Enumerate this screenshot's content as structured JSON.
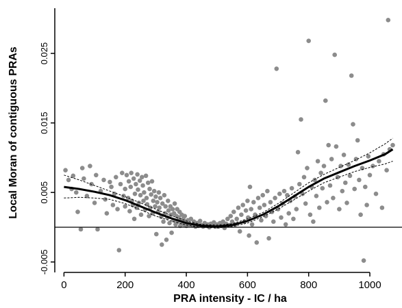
{
  "chart_data": {
    "type": "scatter",
    "xlabel": "PRA intensity - IC / ha",
    "ylabel": "Local Moran of contiguous PRAs",
    "xlim": [
      -30,
      1085
    ],
    "ylim": [
      -0.0065,
      0.0315
    ],
    "x_ticks": [
      0,
      200,
      400,
      600,
      800,
      1000
    ],
    "x_tick_labels": [
      "0",
      "200",
      "400",
      "600",
      "800",
      "1000"
    ],
    "y_ticks": [
      -0.005,
      0.005,
      0.015,
      0.025
    ],
    "y_tick_labels": [
      "-0.005",
      "0.005",
      "0.015",
      "0.025"
    ],
    "reference_line_y": 0,
    "grid": false,
    "colors": {
      "points": "#8c8c8c",
      "fit": "#000000",
      "axes": "#000000"
    },
    "smooth_fit": {
      "x": [
        0,
        50,
        100,
        150,
        200,
        250,
        300,
        350,
        400,
        450,
        500,
        550,
        600,
        650,
        700,
        750,
        800,
        850,
        900,
        950,
        1000,
        1050,
        1075
      ],
      "y": [
        0.0058,
        0.0055,
        0.0051,
        0.0046,
        0.0039,
        0.003,
        0.0021,
        0.0013,
        0.0006,
        0.0002,
        0.0001,
        0.0003,
        0.0009,
        0.0018,
        0.003,
        0.0044,
        0.0058,
        0.007,
        0.0079,
        0.0088,
        0.0096,
        0.0105,
        0.0112
      ]
    },
    "confidence_upper": {
      "x": [
        0,
        50,
        100,
        150,
        200,
        250,
        300,
        350,
        400,
        450,
        500,
        550,
        600,
        650,
        700,
        750,
        800,
        850,
        900,
        950,
        1000,
        1050,
        1075
      ],
      "y": [
        0.0075,
        0.0068,
        0.006,
        0.0052,
        0.0044,
        0.0035,
        0.0026,
        0.0017,
        0.0009,
        0.0004,
        0.0003,
        0.0005,
        0.0012,
        0.0021,
        0.0034,
        0.0049,
        0.0064,
        0.0076,
        0.0086,
        0.0096,
        0.0107,
        0.012,
        0.0128
      ]
    },
    "confidence_lower": {
      "x": [
        0,
        50,
        100,
        150,
        200,
        250,
        300,
        350,
        400,
        450,
        500,
        550,
        600,
        650,
        700,
        750,
        800,
        850,
        900,
        950,
        1000,
        1050,
        1075
      ],
      "y": [
        0.0042,
        0.0043,
        0.0042,
        0.004,
        0.0034,
        0.0025,
        0.0016,
        0.0009,
        0.0003,
        0.0,
        -0.0001,
        0.0001,
        0.0006,
        0.0015,
        0.0026,
        0.0039,
        0.0052,
        0.0064,
        0.0072,
        0.008,
        0.0086,
        0.0091,
        0.0095
      ]
    },
    "points": [
      [
        5,
        0.0082
      ],
      [
        15,
        0.0068
      ],
      [
        25,
        0.0055
      ],
      [
        30,
        0.0074
      ],
      [
        40,
        0.005
      ],
      [
        45,
        0.0022
      ],
      [
        55,
        -0.0003
      ],
      [
        60,
        0.0085
      ],
      [
        65,
        0.007
      ],
      [
        75,
        0.0045
      ],
      [
        85,
        0.0088
      ],
      [
        90,
        0.0062
      ],
      [
        100,
        0.0035
      ],
      [
        105,
        0.0075
      ],
      [
        110,
        -0.0003
      ],
      [
        120,
        0.0052
      ],
      [
        130,
        0.0068
      ],
      [
        135,
        0.004
      ],
      [
        140,
        0.002
      ],
      [
        150,
        0.0065
      ],
      [
        155,
        0.0058
      ],
      [
        160,
        0.0032
      ],
      [
        165,
        0.0048
      ],
      [
        170,
        0.0072
      ],
      [
        175,
        0.0026
      ],
      [
        180,
        -0.0033
      ],
      [
        185,
        0.0062
      ],
      [
        190,
        0.0078
      ],
      [
        195,
        0.0045
      ],
      [
        200,
        0.0055
      ],
      [
        200,
        0.003
      ],
      [
        205,
        0.0075
      ],
      [
        210,
        0.0042
      ],
      [
        212,
        0.0066
      ],
      [
        215,
        0.0023
      ],
      [
        218,
        0.0058
      ],
      [
        220,
        0.0078
      ],
      [
        222,
        0.0038
      ],
      [
        225,
        0.0032
      ],
      [
        228,
        0.007
      ],
      [
        230,
        0.0012
      ],
      [
        232,
        0.0048
      ],
      [
        235,
        0.0062
      ],
      [
        238,
        0.0028
      ],
      [
        240,
        0.0076
      ],
      [
        242,
        0.0054
      ],
      [
        245,
        0.0035
      ],
      [
        248,
        0.0067
      ],
      [
        250,
        0.0046
      ],
      [
        252,
        0.0018
      ],
      [
        255,
        0.0072
      ],
      [
        258,
        0.006
      ],
      [
        260,
        0.0038
      ],
      [
        262,
        0.005
      ],
      [
        265,
        0.0025
      ],
      [
        268,
        0.0074
      ],
      [
        270,
        0.0042
      ],
      [
        272,
        0.0033
      ],
      [
        275,
        0.0064
      ],
      [
        278,
        0.0016
      ],
      [
        280,
        0.0055
      ],
      [
        282,
        0.0028
      ],
      [
        285,
        0.0047
      ],
      [
        288,
        0.0066
      ],
      [
        290,
        0.002
      ],
      [
        292,
        0.0038
      ],
      [
        295,
        0.0052
      ],
      [
        298,
        0.003
      ],
      [
        300,
        0.0044
      ],
      [
        302,
        -0.001
      ],
      [
        305,
        0.0036
      ],
      [
        308,
        0.0022
      ],
      [
        310,
        0.005
      ],
      [
        312,
        0.0028
      ],
      [
        315,
        0.0042
      ],
      [
        318,
        0.0015
      ],
      [
        320,
        -0.0025
      ],
      [
        322,
        0.0034
      ],
      [
        325,
        0.0008
      ],
      [
        328,
        0.0046
      ],
      [
        330,
        0.002
      ],
      [
        332,
        0.003
      ],
      [
        335,
        -0.0018
      ],
      [
        338,
        0.0014
      ],
      [
        340,
        0.0038
      ],
      [
        342,
        0.0024
      ],
      [
        345,
        0.0006
      ],
      [
        348,
        0.003
      ],
      [
        350,
        0.0018
      ],
      [
        352,
        -0.0008
      ],
      [
        355,
        0.0026
      ],
      [
        358,
        0.001
      ],
      [
        360,
        0.002
      ],
      [
        362,
        0.0034
      ],
      [
        365,
        0.0004
      ],
      [
        368,
        0.0016
      ],
      [
        370,
        0.0026
      ],
      [
        372,
        0.0008
      ],
      [
        375,
        0.0014
      ],
      [
        378,
        0.0022
      ],
      [
        380,
        0.0002
      ],
      [
        382,
        0.001
      ],
      [
        385,
        0.0018
      ],
      [
        388,
        0.0006
      ],
      [
        390,
        0.0012
      ],
      [
        392,
        0.0004
      ],
      [
        395,
        0.0016
      ],
      [
        398,
        0.0008
      ],
      [
        400,
        0.0002
      ],
      [
        405,
        0.001
      ],
      [
        410,
        0.0004
      ],
      [
        415,
        0.0012
      ],
      [
        420,
        0.0003
      ],
      [
        425,
        0.0008
      ],
      [
        430,
        0.0001
      ],
      [
        435,
        0.0006
      ],
      [
        440,
        0.0002
      ],
      [
        445,
        0.0009
      ],
      [
        450,
        0.0003
      ],
      [
        455,
        0.0001
      ],
      [
        460,
        0.0006
      ],
      [
        465,
        0.0002
      ],
      [
        470,
        0.0004
      ],
      [
        475,
        0.0
      ],
      [
        480,
        0.0005
      ],
      [
        485,
        0.0002
      ],
      [
        490,
        0.0007
      ],
      [
        495,
        0.0001
      ],
      [
        500,
        0.0004
      ],
      [
        505,
        0.0001
      ],
      [
        510,
        0.0006
      ],
      [
        515,
        0.0002
      ],
      [
        520,
        0.0008
      ],
      [
        525,
        -0.0001
      ],
      [
        530,
        0.0005
      ],
      [
        535,
        0.0012
      ],
      [
        540,
        0.0003
      ],
      [
        545,
        0.0016
      ],
      [
        550,
        0.0008
      ],
      [
        555,
        0.0022
      ],
      [
        560,
        0.0004
      ],
      [
        565,
        0.0012
      ],
      [
        570,
        0.0028
      ],
      [
        575,
        -0.0006
      ],
      [
        580,
        0.0018
      ],
      [
        585,
        0.0032
      ],
      [
        590,
        0.0008
      ],
      [
        595,
        0.0024
      ],
      [
        600,
        0.0038
      ],
      [
        602,
        0.0014
      ],
      [
        605,
        -0.0012
      ],
      [
        608,
        0.0058
      ],
      [
        612,
        0.0026
      ],
      [
        615,
        0.0004
      ],
      [
        620,
        0.0036
      ],
      [
        625,
        0.0018
      ],
      [
        630,
        -0.0022
      ],
      [
        635,
        0.0042
      ],
      [
        640,
        0.0028
      ],
      [
        645,
        0.001
      ],
      [
        650,
        0.0046
      ],
      [
        655,
        0.0032
      ],
      [
        660,
        0.0016
      ],
      [
        665,
        0.0052
      ],
      [
        670,
        -0.0016
      ],
      [
        675,
        0.0036
      ],
      [
        680,
        0.0022
      ],
      [
        685,
        0.0008
      ],
      [
        690,
        0.0042
      ],
      [
        695,
        0.0228
      ],
      [
        700,
        0.0026
      ],
      [
        705,
        0.0048
      ],
      [
        710,
        0.0014
      ],
      [
        715,
        0.0034
      ],
      [
        720,
        0.0052
      ],
      [
        725,
        0.0004
      ],
      [
        730,
        0.0046
      ],
      [
        735,
        0.002
      ],
      [
        740,
        0.0038
      ],
      [
        745,
        0.0056
      ],
      [
        750,
        0.0012
      ],
      [
        755,
        0.0044
      ],
      [
        760,
        0.0026
      ],
      [
        765,
        0.0108
      ],
      [
        770,
        0.0062
      ],
      [
        775,
        0.0155
      ],
      [
        780,
        0.0048
      ],
      [
        785,
        0.0072
      ],
      [
        790,
        0.0034
      ],
      [
        795,
        0.0085
      ],
      [
        800,
        0.0268
      ],
      [
        805,
        0.0018
      ],
      [
        810,
        0.0058
      ],
      [
        815,
        0.0008
      ],
      [
        820,
        0.0068
      ],
      [
        825,
        0.0045
      ],
      [
        830,
        0.0095
      ],
      [
        835,
        0.0028
      ],
      [
        840,
        0.0078
      ],
      [
        845,
        0.0056
      ],
      [
        850,
        0.0088
      ],
      [
        855,
        0.0182
      ],
      [
        860,
        0.0036
      ],
      [
        865,
        0.0118
      ],
      [
        870,
        0.006
      ],
      [
        875,
        0.0098
      ],
      [
        880,
        0.0042
      ],
      [
        885,
        0.0248
      ],
      [
        890,
        0.0116
      ],
      [
        895,
        0.0072
      ],
      [
        900,
        0.0026
      ],
      [
        905,
        0.0088
      ],
      [
        910,
        0.0052
      ],
      [
        915,
        0.0104
      ],
      [
        920,
        0.0064
      ],
      [
        925,
        0.0035
      ],
      [
        930,
        0.009
      ],
      [
        935,
        0.0074
      ],
      [
        940,
        0.0218
      ],
      [
        945,
        0.0148
      ],
      [
        950,
        0.0055
      ],
      [
        955,
        0.0098
      ],
      [
        960,
        0.0125
      ],
      [
        965,
        0.0068
      ],
      [
        970,
        0.0018
      ],
      [
        975,
        0.0085
      ],
      [
        980,
        -0.0048
      ],
      [
        985,
        0.0058
      ],
      [
        990,
        0.0032
      ],
      [
        995,
        0.0102
      ],
      [
        1000,
        0.0075
      ],
      [
        1010,
        0.0088
      ],
      [
        1020,
        0.0048
      ],
      [
        1030,
        0.0095
      ],
      [
        1040,
        0.0028
      ],
      [
        1045,
        0.0105
      ],
      [
        1055,
        0.0082
      ],
      [
        1060,
        0.0298
      ],
      [
        1065,
        0.0112
      ],
      [
        1075,
        0.0118
      ]
    ]
  }
}
